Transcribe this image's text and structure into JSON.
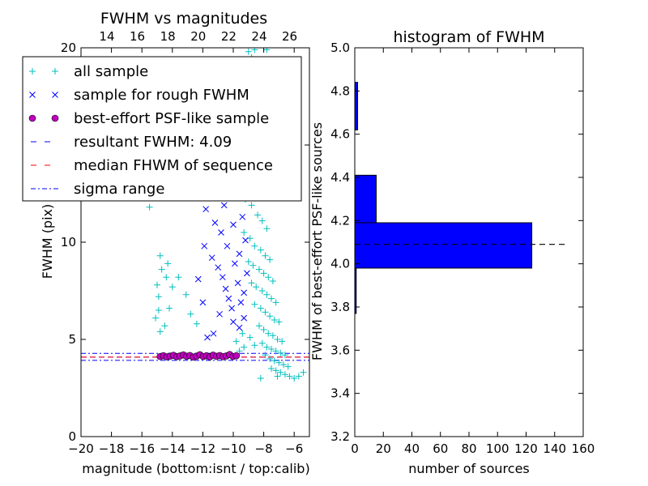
{
  "chart_data": [
    {
      "type": "scatter",
      "title": "FWHM vs magnitudes",
      "xlabel": "magnitude (bottom:isnt / top:calib)",
      "ylabel": "FWHM (pix)",
      "xlim": [
        -20,
        -5
      ],
      "ylim": [
        0,
        20
      ],
      "x_ticks": [
        -20,
        -18,
        -16,
        -14,
        -12,
        -10,
        -8,
        -6
      ],
      "x_tick_labels": [
        "−20",
        "−18",
        "−16",
        "−14",
        "−12",
        "−10",
        "−8",
        "−6"
      ],
      "y_ticks": [
        0,
        5,
        10,
        15,
        20
      ],
      "y_tick_labels": [
        "0",
        "5",
        "10",
        "15",
        "20"
      ],
      "top_ticks": [
        14,
        16,
        18,
        20,
        22,
        24,
        26
      ],
      "top_tick_labels": [
        "14",
        "16",
        "18",
        "20",
        "22",
        "24",
        "26"
      ],
      "top_axis_range": [
        12.3,
        27.3
      ],
      "grid": false,
      "legend_position": "upper-left",
      "legend": [
        {
          "label": "all sample",
          "marker": "+",
          "color": "#00bfbf"
        },
        {
          "label": "sample for rough FWHM",
          "marker": "x",
          "color": "#0000ff"
        },
        {
          "label": "best-effort PSF-like sample",
          "marker": "o",
          "color": "#bf00bf"
        },
        {
          "label": "resultant FWHM: 4.09",
          "line": "dashed",
          "color": "#0000ff"
        },
        {
          "label": "median FHWM of sequence",
          "line": "dashed",
          "color": "#ff0000"
        },
        {
          "label": "sigma range",
          "line": "dashdot",
          "color": "#0000ff"
        }
      ],
      "series": [
        {
          "name": "all sample",
          "color": "#00bfbf",
          "points": [
            [
              -15.5,
              11.8
            ],
            [
              -15.2,
              12.5
            ],
            [
              -15.0,
              7.8
            ],
            [
              -14.8,
              9.3
            ],
            [
              -14.9,
              7.2
            ],
            [
              -14.7,
              8.6
            ],
            [
              -14.5,
              5.7
            ],
            [
              -14.8,
              5.4
            ],
            [
              -14.3,
              8.9
            ],
            [
              -14.4,
              8.2
            ],
            [
              -14.0,
              7.7
            ],
            [
              -13.6,
              8.2
            ],
            [
              -14.2,
              6.6
            ],
            [
              -13.1,
              7.3
            ],
            [
              -12.4,
              5.8
            ],
            [
              -12.8,
              6.3
            ],
            [
              -14.9,
              6.5
            ],
            [
              -15.1,
              6.1
            ],
            [
              -9.0,
              19.8
            ],
            [
              -8.8,
              19.5
            ],
            [
              -8.6,
              19.9
            ],
            [
              -7.8,
              19.9
            ],
            [
              -9.2,
              18.4
            ],
            [
              -8.4,
              18.6
            ],
            [
              -9.4,
              16.8
            ],
            [
              -9.0,
              16.4
            ],
            [
              -8.7,
              15.6
            ],
            [
              -8.3,
              15.2
            ],
            [
              -9.5,
              14.6
            ],
            [
              -9.1,
              14.2
            ],
            [
              -8.5,
              13.9
            ],
            [
              -8.0,
              13.3
            ],
            [
              -9.6,
              12.7
            ],
            [
              -9.2,
              12.2
            ],
            [
              -8.8,
              11.9
            ],
            [
              -8.4,
              11.4
            ],
            [
              -8.1,
              11.1
            ],
            [
              -7.8,
              10.7
            ],
            [
              -9.3,
              10.5
            ],
            [
              -8.9,
              10.2
            ],
            [
              -8.6,
              9.8
            ],
            [
              -8.2,
              9.6
            ],
            [
              -7.9,
              9.3
            ],
            [
              -7.6,
              9.1
            ],
            [
              -9.0,
              9.0
            ],
            [
              -8.7,
              8.8
            ],
            [
              -8.3,
              8.6
            ],
            [
              -8.0,
              8.4
            ],
            [
              -7.7,
              8.2
            ],
            [
              -7.4,
              8.0
            ],
            [
              -8.8,
              7.9
            ],
            [
              -8.5,
              7.7
            ],
            [
              -8.1,
              7.5
            ],
            [
              -7.8,
              7.3
            ],
            [
              -7.5,
              7.1
            ],
            [
              -7.2,
              6.9
            ],
            [
              -8.6,
              6.8
            ],
            [
              -8.2,
              6.6
            ],
            [
              -7.9,
              6.4
            ],
            [
              -7.6,
              6.2
            ],
            [
              -7.3,
              6.0
            ],
            [
              -7.0,
              5.9
            ],
            [
              -8.3,
              5.7
            ],
            [
              -8.0,
              5.5
            ],
            [
              -7.7,
              5.3
            ],
            [
              -7.4,
              5.2
            ],
            [
              -7.1,
              5.0
            ],
            [
              -6.8,
              4.9
            ],
            [
              -8.1,
              4.8
            ],
            [
              -7.8,
              4.6
            ],
            [
              -7.5,
              4.5
            ],
            [
              -7.2,
              4.4
            ],
            [
              -6.9,
              4.3
            ],
            [
              -6.6,
              4.2
            ],
            [
              -7.9,
              4.2
            ],
            [
              -7.6,
              4.0
            ],
            [
              -7.3,
              3.9
            ],
            [
              -7.0,
              3.8
            ],
            [
              -6.7,
              3.7
            ],
            [
              -6.4,
              3.6
            ],
            [
              -7.5,
              3.5
            ],
            [
              -7.2,
              3.4
            ],
            [
              -6.9,
              3.3
            ],
            [
              -6.6,
              3.2
            ],
            [
              -6.3,
              3.1
            ],
            [
              -6.0,
              3.0
            ],
            [
              -5.7,
              3.1
            ],
            [
              -5.4,
              3.3
            ],
            [
              -7.1,
              3.1
            ],
            [
              -8.2,
              3.0
            ],
            [
              -9.6,
              4.4
            ],
            [
              -9.3,
              4.6
            ],
            [
              -9.8,
              4.9
            ],
            [
              -9.4,
              5.3
            ],
            [
              -8.9,
              5.1
            ],
            [
              -8.6,
              4.7
            ]
          ]
        },
        {
          "name": "sample for rough FWHM",
          "color": "#0000ff",
          "points": [
            [
              -12.0,
              12.3
            ],
            [
              -11.8,
              11.7
            ],
            [
              -11.6,
              13.4
            ],
            [
              -11.2,
              11.0
            ],
            [
              -11.0,
              12.8
            ],
            [
              -10.8,
              10.5
            ],
            [
              -10.6,
              11.9
            ],
            [
              -10.4,
              9.8
            ],
            [
              -10.2,
              13.7
            ],
            [
              -10.0,
              10.9
            ],
            [
              -9.8,
              12.4
            ],
            [
              -9.6,
              9.4
            ],
            [
              -11.4,
              9.2
            ],
            [
              -11.0,
              8.7
            ],
            [
              -10.7,
              8.2
            ],
            [
              -10.5,
              7.6
            ],
            [
              -10.3,
              7.1
            ],
            [
              -10.1,
              6.6
            ],
            [
              -9.9,
              8.9
            ],
            [
              -9.7,
              7.9
            ],
            [
              -9.5,
              6.9
            ],
            [
              -9.3,
              6.1
            ],
            [
              -9.6,
              5.6
            ],
            [
              -10.0,
              5.9
            ],
            [
              -10.9,
              6.3
            ],
            [
              -11.3,
              5.3
            ],
            [
              -11.7,
              5.1
            ],
            [
              -12.0,
              6.9
            ],
            [
              -12.3,
              8.1
            ],
            [
              -11.9,
              9.8
            ],
            [
              -9.4,
              11.3
            ],
            [
              -9.2,
              10.1
            ],
            [
              -9.0,
              12.6
            ],
            [
              -9.1,
              8.4
            ],
            [
              -9.3,
              7.4
            ],
            [
              -9.8,
              14.6
            ],
            [
              -10.2,
              15.8
            ],
            [
              -10.5,
              14.1
            ],
            [
              -11.1,
              15.2
            ],
            [
              -11.5,
              14.3
            ],
            [
              -10.0,
              16.2
            ],
            [
              -9.5,
              15.4
            ]
          ]
        },
        {
          "name": "best-effort PSF-like sample",
          "color": "#bf00bf",
          "x_start": -14.8,
          "x_end": -9.8,
          "count": 24,
          "y_values": [
            4.12,
            4.16,
            4.1,
            4.14,
            4.18,
            4.11,
            4.15,
            4.2,
            4.13,
            4.17,
            4.09,
            4.14,
            4.21,
            4.12,
            4.16,
            4.1,
            4.19,
            4.13,
            4.17,
            4.11,
            4.15,
            4.22,
            4.12,
            4.16
          ]
        }
      ],
      "hlines": [
        {
          "name": "resultant FWHM: 4.09",
          "y": 4.09,
          "style": "dashed",
          "color": "#0000ff"
        },
        {
          "name": "median FHWM of sequence",
          "y": 4.09,
          "style": "dashed",
          "color": "#ff0000"
        },
        {
          "name": "sigma range upper",
          "y": 4.28,
          "style": "dashdot",
          "color": "#0000ff"
        },
        {
          "name": "sigma range lower",
          "y": 3.92,
          "style": "dashdot",
          "color": "#0000ff"
        }
      ]
    },
    {
      "type": "bar",
      "orientation": "horizontal",
      "title": "histogram of FWHM",
      "xlabel": "number of sources",
      "ylabel": "FWHM of best-effort PSF-like sources",
      "xlim": [
        0,
        160
      ],
      "ylim": [
        3.2,
        5.0
      ],
      "x_ticks": [
        0,
        20,
        40,
        60,
        80,
        100,
        120,
        140,
        160
      ],
      "x_tick_labels": [
        "0",
        "20",
        "40",
        "60",
        "80",
        "100",
        "120",
        "140",
        "160"
      ],
      "y_ticks": [
        3.2,
        3.4,
        3.6,
        3.8,
        4.0,
        4.2,
        4.4,
        4.6,
        4.8,
        5.0
      ],
      "y_tick_labels": [
        "3.2",
        "3.4",
        "3.6",
        "3.8",
        "4.0",
        "4.2",
        "4.4",
        "4.6",
        "4.8",
        "5.0"
      ],
      "grid": false,
      "bar_color": "#0000ff",
      "bars": [
        {
          "y0": 3.77,
          "y1": 3.98,
          "value": 1
        },
        {
          "y0": 3.98,
          "y1": 4.19,
          "value": 124
        },
        {
          "y0": 4.19,
          "y1": 4.41,
          "value": 15
        },
        {
          "y0": 4.41,
          "y1": 4.62,
          "value": 0
        },
        {
          "y0": 4.62,
          "y1": 4.84,
          "value": 2
        }
      ],
      "hlines": [
        {
          "name": "resultant FWHM",
          "y": 4.09,
          "x_end": 148,
          "style": "dashed",
          "color": "#000000"
        }
      ]
    }
  ]
}
